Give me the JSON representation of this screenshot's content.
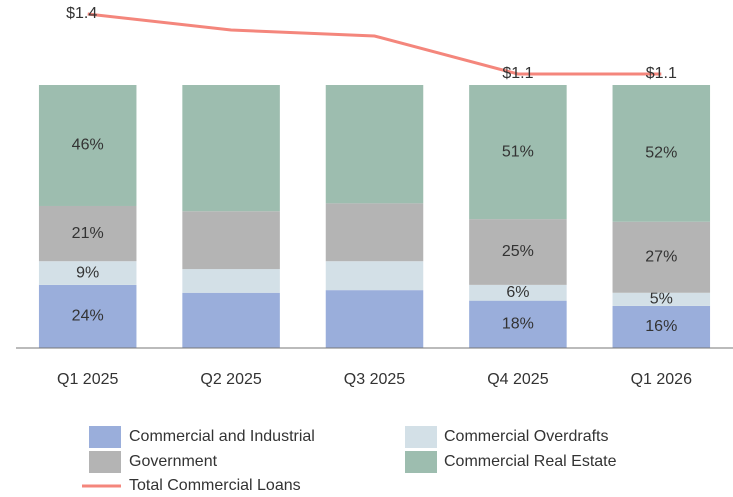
{
  "chart_data": {
    "type": "bar",
    "stacked": true,
    "categories": [
      "Q1 2025",
      "Q2 2025",
      "Q3 2025",
      "Q4 2025",
      "Q1 2026"
    ],
    "ylim": [
      0,
      100
    ],
    "y2lim": [
      -0.27,
      1.47
    ],
    "series": [
      {
        "name": "Commercial and Industrial",
        "color": "#9aaedb",
        "values": [
          24,
          21,
          22,
          18,
          16
        ],
        "value_labels": [
          "24%",
          null,
          null,
          "18%",
          "16%"
        ]
      },
      {
        "name": "Commercial Overdrafts",
        "color": "#d3e0e7",
        "values": [
          9,
          9,
          11,
          6,
          5
        ],
        "value_labels": [
          "9%",
          null,
          null,
          "6%",
          "5%"
        ]
      },
      {
        "name": "Government",
        "color": "#b4b4b4",
        "values": [
          21,
          22,
          22,
          25,
          27
        ],
        "value_labels": [
          "21%",
          null,
          null,
          "25%",
          "27%"
        ]
      },
      {
        "name": "Commercial Real Estate",
        "color": "#9dbdaf",
        "values": [
          46,
          48,
          45,
          51,
          52
        ],
        "value_labels": [
          "46%",
          null,
          null,
          "51%",
          "52%"
        ]
      },
      {
        "name": "Total Commercial Loans",
        "type": "line",
        "axis": "y2",
        "color": "#f4867c",
        "values": [
          1.4,
          1.32,
          1.29,
          1.1,
          1.1
        ],
        "value_labels": [
          "$1.4",
          null,
          null,
          "$1.1",
          "$1.1"
        ]
      }
    ]
  }
}
